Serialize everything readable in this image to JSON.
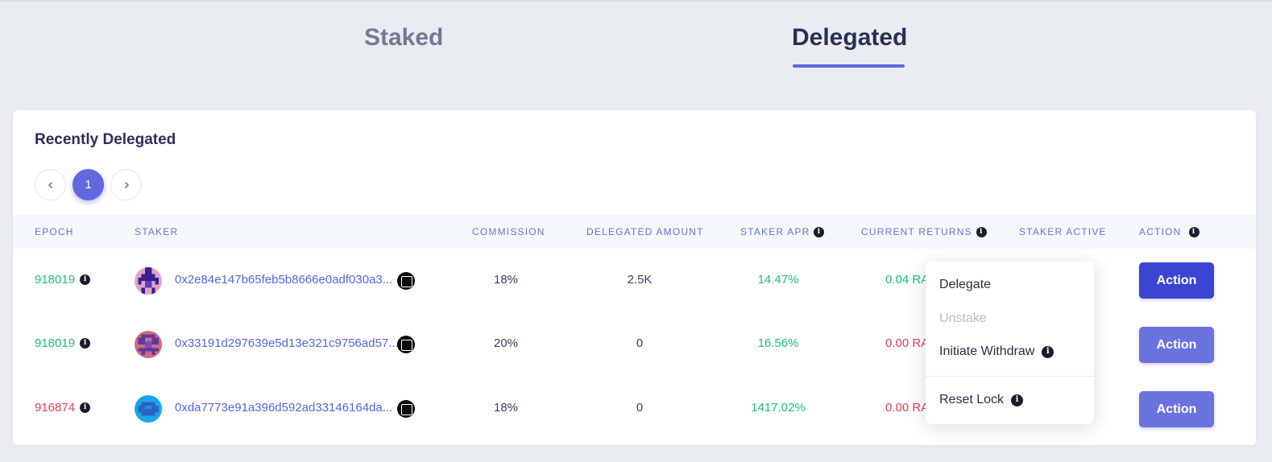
{
  "tabs": {
    "staked": "Staked",
    "delegated": "Delegated",
    "active": "delegated"
  },
  "card": {
    "title": "Recently Delegated"
  },
  "pagination": {
    "current_page": "1"
  },
  "table": {
    "headers": {
      "epoch": "EPOCH",
      "staker": "STAKER",
      "commission": "COMMISSION",
      "delegated_amount": "DELEGATED AMOUNT",
      "staker_apr": "STAKER APR",
      "current_returns": "CURRENT RETURNS",
      "staker_active": "STAKER ACTIVE",
      "action": "ACTION"
    },
    "rows": [
      {
        "epoch": "918019",
        "epoch_color": "#1cbf7a",
        "staker": "0x2e84e147b65feb5b8666e0adf030a3...",
        "commission": "18%",
        "delegated_amount": "2.5K",
        "staker_apr": "14.47%",
        "current_returns": "0.04 RA",
        "returns_color": "#1cbf7a",
        "action_label": "Action"
      },
      {
        "epoch": "918019",
        "epoch_color": "#1cbf7a",
        "staker": "0x33191d297639e5d13e321c9756ad57...",
        "commission": "20%",
        "delegated_amount": "0",
        "staker_apr": "16.56%",
        "current_returns": "0.00 RA",
        "returns_color": "#e63c5a",
        "action_label": "Action"
      },
      {
        "epoch": "916874",
        "epoch_color": "#e63c5a",
        "staker": "0xda7773e91a396d592ad33146164da...",
        "commission": "18%",
        "delegated_amount": "0",
        "staker_apr": "1417.02%",
        "current_returns": "0.00 RA",
        "returns_color": "#e63c5a",
        "action_label": "Action"
      }
    ]
  },
  "action_menu": {
    "items": [
      "Delegate",
      "Unstake",
      "Initiate Withdraw",
      "Reset Lock"
    ],
    "disabled": [
      "Unstake"
    ]
  },
  "colors": {
    "accent": "#5f68dc",
    "primary_button": "#3c44d4",
    "secondary_button": "#6a72e0",
    "positive": "#1cbf7a",
    "negative": "#e63c5a"
  },
  "icons": {
    "info": "info-icon",
    "chevron_left": "chevron-left-icon",
    "chevron_right": "chevron-right-icon",
    "staker_badge": "skale-badge-icon",
    "avatar": "staker-avatar-icon"
  }
}
